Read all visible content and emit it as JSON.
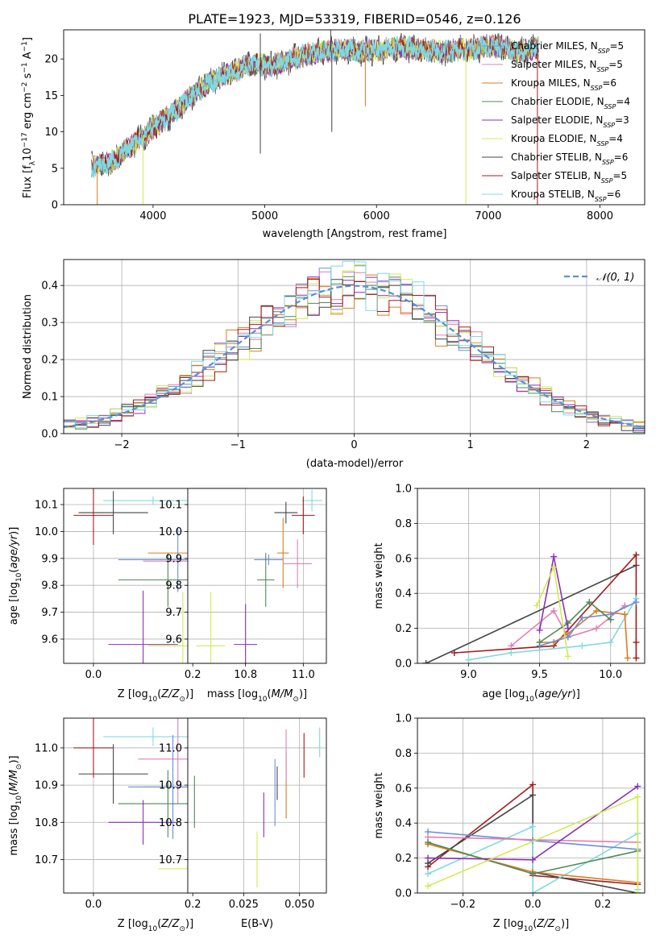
{
  "figure_title": "PLATE=1923, MJD=53319, FIBERID=0546, z=0.126",
  "models": [
    {
      "name": "Chabrier MILES",
      "nssp": "5",
      "color": "#6a8fd8"
    },
    {
      "name": "Salpeter MILES",
      "nssp": "5",
      "color": "#e07fb7"
    },
    {
      "name": "Kroupa MILES",
      "nssp": "6",
      "color": "#e07b1c"
    },
    {
      "name": "Chabrier ELODIE",
      "nssp": "4",
      "color": "#4f8a56"
    },
    {
      "name": "Salpeter ELODIE",
      "nssp": "3",
      "color": "#8e2fb5"
    },
    {
      "name": "Kroupa ELODIE",
      "nssp": "4",
      "color": "#d3ea53"
    },
    {
      "name": "Chabrier STELIB",
      "nssp": "6",
      "color": "#444444"
    },
    {
      "name": "Salpeter STELIB",
      "nssp": "5",
      "color": "#a31b1b"
    },
    {
      "name": "Kroupa STELIB",
      "nssp": "6",
      "color": "#7fd9e3"
    }
  ],
  "chart_data": [
    {
      "id": "spectrum",
      "type": "line",
      "title": "",
      "xlabel": "wavelength [Angstrom, rest frame]",
      "ylabel_parts": [
        "Flux [f",
        "λ",
        "10",
        "−17",
        " erg cm",
        "−2",
        " s",
        "−1",
        " A",
        "−1",
        "]"
      ],
      "xlim": [
        3200,
        8400
      ],
      "ylim": [
        0,
        24
      ],
      "xticks": [
        4000,
        5000,
        6000,
        7000,
        8000
      ],
      "yticks": [
        0,
        5,
        10,
        15,
        20
      ],
      "legend": "upper-right",
      "continuum": {
        "x": [
          3450,
          3550,
          3650,
          3750,
          3850,
          3950,
          4050,
          4150,
          4250,
          4350,
          4450,
          4550,
          4650,
          4750,
          4850,
          4950,
          5050,
          5150,
          5250,
          5350,
          5450,
          5550,
          5650,
          5750,
          5850,
          5950,
          6050,
          6150,
          6250,
          6350,
          6450,
          6550,
          6650,
          6750,
          6850,
          6950,
          7050,
          7150,
          7250,
          7350,
          7450
        ],
        "y": [
          5.3,
          5.5,
          6.0,
          7.5,
          8.6,
          9.8,
          11.2,
          12.2,
          13.5,
          15.0,
          16.2,
          17.0,
          17.8,
          18.5,
          19.2,
          19.2,
          19.0,
          19.5,
          20.0,
          20.5,
          20.8,
          21.0,
          21.3,
          21.2,
          21.0,
          21.2,
          21.3,
          21.5,
          21.6,
          21.3,
          21.2,
          21.0,
          21.0,
          21.4,
          21.2,
          21.6,
          21.8,
          21.6,
          21.0,
          21.2,
          21.5
        ]
      },
      "features": [
        {
          "x": 4960,
          "y": 7.0,
          "series": "Chabrier STELIB"
        },
        {
          "x": 4960,
          "y": 23.5,
          "series": "Chabrier STELIB"
        },
        {
          "x": 5590,
          "y": 24.0,
          "series": "Chabrier STELIB"
        },
        {
          "x": 5600,
          "y": 10.0,
          "series": "Chabrier STELIB"
        },
        {
          "x": 5900,
          "y": 13.5,
          "series": "Kroupa MILES"
        },
        {
          "x": 6800,
          "y": 0.0,
          "series": "Kroupa ELODIE"
        },
        {
          "x": 7440,
          "y": 0.0,
          "series": "Salpeter STELIB"
        },
        {
          "x": 3910,
          "y": 0.0,
          "series": "Kroupa ELODIE"
        },
        {
          "x": 3500,
          "y": 0.0,
          "series": "Kroupa MILES"
        }
      ]
    },
    {
      "id": "residual-histogram",
      "type": "histogram",
      "xlabel": "(data-model)/error",
      "ylabel": "Normed distribution",
      "xlim": [
        -2.5,
        2.5
      ],
      "ylim": [
        0,
        0.47
      ],
      "xticks": [
        -2,
        -1,
        0,
        1,
        2
      ],
      "yticks": [
        0.0,
        0.1,
        0.2,
        0.3,
        0.4
      ],
      "legend_label": "𝒩(0, 1)",
      "legend": "upper-right",
      "bin_width": 0.1
    },
    {
      "id": "age-vs-Z",
      "type": "errorbar",
      "xlabel": "Z [log10(Z/Z⊙)]",
      "ylabel": "age  [log10(age/yr)]",
      "xlim": [
        -0.06,
        0.31
      ],
      "ylim": [
        9.51,
        10.16
      ],
      "xticks": [
        0.0,
        0.2
      ],
      "yticks": [
        9.6,
        9.7,
        9.8,
        9.9,
        10.0,
        10.1
      ],
      "points": [
        {
          "x": 0.12,
          "xerr": 0.1,
          "y": 10.115,
          "yerr": 0.015,
          "color": "#7fd9e3"
        },
        {
          "x": 0.04,
          "xerr": 0.07,
          "y": 10.07,
          "yerr": 0.08,
          "color": "#444444"
        },
        {
          "x": 0.0,
          "xerr": 0.04,
          "y": 10.06,
          "yerr": 0.11,
          "color": "#a31b1b"
        },
        {
          "x": 0.2,
          "xerr": 0.09,
          "y": 9.92,
          "yerr": 0.09,
          "color": "#e07b1c"
        },
        {
          "x": 0.19,
          "xerr": 0.09,
          "y": 9.89,
          "yerr": 0.11,
          "color": "#e07fb7"
        },
        {
          "x": 0.17,
          "xerr": 0.12,
          "y": 9.895,
          "yerr": 0.12,
          "color": "#6a8fd8"
        },
        {
          "x": 0.15,
          "xerr": 0.1,
          "y": 9.82,
          "yerr": 0.1,
          "color": "#4f8a56"
        },
        {
          "x": 0.18,
          "xerr": 0.07,
          "y": 9.575,
          "yerr": 0.2,
          "color": "#d3ea53"
        },
        {
          "x": 0.1,
          "xerr": 0.07,
          "y": 9.58,
          "yerr": 0.2,
          "color": "#8e2fb5"
        }
      ]
    },
    {
      "id": "age-vs-mass",
      "type": "errorbar",
      "xlabel": "mass [log10(M/M⊙)]",
      "ylabel": "",
      "xlim": [
        10.6,
        11.08
      ],
      "ylim": [
        9.51,
        10.16
      ],
      "xticks": [
        10.8,
        11.0
      ],
      "yticks": [
        9.6,
        9.7,
        9.8,
        9.9,
        10.0,
        10.1
      ],
      "points": [
        {
          "x": 11.03,
          "xerr": 0.035,
          "y": 10.115,
          "yerr": 0.04,
          "color": "#7fd9e3"
        },
        {
          "x": 10.94,
          "xerr": 0.04,
          "y": 10.07,
          "yerr": 0.04,
          "color": "#444444"
        },
        {
          "x": 11.0,
          "xerr": 0.04,
          "y": 10.06,
          "yerr": 0.07,
          "color": "#a31b1b"
        },
        {
          "x": 10.93,
          "xerr": 0.02,
          "y": 9.92,
          "yerr": 0.13,
          "color": "#e07b1c"
        },
        {
          "x": 10.98,
          "xerr": 0.05,
          "y": 9.88,
          "yerr": 0.09,
          "color": "#e07fb7"
        },
        {
          "x": 10.88,
          "xerr": 0.05,
          "y": 9.895,
          "yerr": 0.02,
          "color": "#6a8fd8"
        },
        {
          "x": 10.87,
          "xerr": 0.03,
          "y": 9.82,
          "yerr": 0.1,
          "color": "#4f8a56"
        },
        {
          "x": 10.68,
          "xerr": 0.05,
          "y": 9.575,
          "yerr": 0.2,
          "color": "#d3ea53"
        },
        {
          "x": 10.8,
          "xerr": 0.04,
          "y": 9.58,
          "yerr": 0.15,
          "color": "#8e2fb5"
        }
      ]
    },
    {
      "id": "weight-vs-age",
      "type": "line",
      "xlabel": "age  [log10(age/yr)]",
      "ylabel": "mass weight",
      "xlim": [
        8.64,
        10.24
      ],
      "ylim": [
        0,
        1.0
      ],
      "xticks": [
        9.0,
        9.5,
        10.0
      ],
      "yticks": [
        0.0,
        0.2,
        0.4,
        0.6,
        0.8,
        1.0
      ],
      "series": [
        {
          "name": "Chabrier STELIB",
          "x": [
            8.7,
            10.18
          ],
          "y": [
            0.0,
            0.56
          ],
          "color": "#444444"
        },
        {
          "name": "Salpeter STELIB",
          "x": [
            8.9,
            9.6,
            10.18,
            10.18,
            10.18
          ],
          "y": [
            0.06,
            0.1,
            0.62,
            0.12,
            0.03
          ],
          "color": "#a31b1b"
        },
        {
          "name": "Kroupa STELIB",
          "x": [
            9.0,
            9.3,
            9.8,
            10.0,
            10.18
          ],
          "y": [
            0.02,
            0.06,
            0.1,
            0.12,
            0.37
          ],
          "color": "#7fd9e3"
        },
        {
          "name": "Salpeter MILES",
          "x": [
            9.3,
            9.6,
            9.7,
            9.9,
            10.1
          ],
          "y": [
            0.1,
            0.3,
            0.15,
            0.2,
            0.33
          ],
          "color": "#e07fb7"
        },
        {
          "name": "Kroupa MILES",
          "x": [
            9.5,
            9.6,
            9.7,
            9.9,
            10.1,
            10.12
          ],
          "y": [
            0.12,
            0.12,
            0.17,
            0.3,
            0.28,
            0.03
          ],
          "color": "#e07b1c"
        },
        {
          "name": "Chabrier MILES",
          "x": [
            9.5,
            9.7,
            9.8,
            10.0,
            10.18
          ],
          "y": [
            0.1,
            0.15,
            0.26,
            0.28,
            0.35
          ],
          "color": "#6a8fd8"
        },
        {
          "name": "Chabrier ELODIE",
          "x": [
            9.5,
            9.7,
            9.85,
            10.0
          ],
          "y": [
            0.12,
            0.23,
            0.35,
            0.25
          ],
          "color": "#4f8a56"
        },
        {
          "name": "Salpeter ELODIE",
          "x": [
            9.5,
            9.6,
            9.7
          ],
          "y": [
            0.19,
            0.61,
            0.2
          ],
          "color": "#8e2fb5"
        },
        {
          "name": "Kroupa ELODIE",
          "x": [
            9.48,
            9.6,
            9.7
          ],
          "y": [
            0.33,
            0.55,
            0.04
          ],
          "color": "#d3ea53"
        }
      ]
    },
    {
      "id": "mass-vs-Z",
      "type": "errorbar",
      "xlabel": "Z [log10(Z/Z⊙)]",
      "ylabel": "mass [log10(M/M⊙)]",
      "xlim": [
        -0.06,
        0.31
      ],
      "ylim": [
        10.61,
        11.08
      ],
      "xticks": [
        0.0,
        0.2
      ],
      "yticks": [
        10.7,
        10.8,
        10.9,
        11.0
      ],
      "points": [
        {
          "x": 0.12,
          "xerr": 0.1,
          "y": 11.03,
          "yerr": 0.025,
          "color": "#7fd9e3"
        },
        {
          "x": 0.04,
          "xerr": 0.07,
          "y": 10.93,
          "yerr": 0.08,
          "color": "#444444"
        },
        {
          "x": 0.0,
          "xerr": 0.04,
          "y": 11.0,
          "yerr": 0.08,
          "color": "#a31b1b"
        },
        {
          "x": 0.2,
          "xerr": 0.1,
          "y": 10.895,
          "yerr": 0.06,
          "color": "#e07b1c"
        },
        {
          "x": 0.17,
          "xerr": 0.08,
          "y": 10.97,
          "yerr": 0.12,
          "color": "#e07fb7"
        },
        {
          "x": 0.16,
          "xerr": 0.09,
          "y": 10.895,
          "yerr": 0.14,
          "color": "#6a8fd8"
        },
        {
          "x": 0.15,
          "xerr": 0.1,
          "y": 10.85,
          "yerr": 0.09,
          "color": "#4f8a56"
        },
        {
          "x": 0.2,
          "xerr": 0.07,
          "y": 10.675,
          "yerr": 0.1,
          "color": "#d3ea53"
        },
        {
          "x": 0.1,
          "xerr": 0.07,
          "y": 10.8,
          "yerr": 0.06,
          "color": "#8e2fb5"
        }
      ]
    },
    {
      "id": "mass-vs-ebv",
      "type": "errorbar",
      "xlabel": "E(B-V)",
      "ylabel": "",
      "xlim": [
        0.0,
        0.062
      ],
      "ylim": [
        10.61,
        11.08
      ],
      "xticks": [
        0.025,
        0.05
      ],
      "yticks": [
        10.7,
        10.8,
        10.9,
        11.0
      ],
      "points": [
        {
          "x": 0.003,
          "y": 10.855,
          "yerr": 0.07,
          "color": "#4f8a56"
        },
        {
          "x": 0.031,
          "y": 10.7,
          "yerr": 0.075,
          "color": "#d3ea53"
        },
        {
          "x": 0.034,
          "y": 10.82,
          "yerr": 0.06,
          "color": "#8e2fb5"
        },
        {
          "x": 0.039,
          "y": 10.88,
          "yerr": 0.09,
          "color": "#6a8fd8"
        },
        {
          "x": 0.04,
          "y": 10.905,
          "yerr": 0.045,
          "color": "#444444"
        },
        {
          "x": 0.044,
          "y": 10.9,
          "yerr": 0.09,
          "color": "#e07b1c"
        },
        {
          "x": 0.044,
          "y": 10.98,
          "yerr": 0.07,
          "color": "#e07fb7"
        },
        {
          "x": 0.052,
          "y": 10.98,
          "yerr": 0.06,
          "color": "#a31b1b"
        },
        {
          "x": 0.059,
          "y": 11.015,
          "yerr": 0.04,
          "color": "#7fd9e3"
        }
      ]
    },
    {
      "id": "weight-vs-Z",
      "type": "line",
      "xlabel": "Z [log10(Z/Z⊙)]",
      "ylabel": "mass weight",
      "xlim": [
        -0.33,
        0.32
      ],
      "ylim": [
        0,
        1.0
      ],
      "xticks": [
        -0.2,
        0.0,
        0.2
      ],
      "yticks": [
        0.0,
        0.2,
        0.4,
        0.6,
        0.8,
        1.0
      ],
      "series": [
        {
          "name": "Salpeter STELIB",
          "x": [
            -0.3,
            0.0,
            0.0,
            0.3
          ],
          "y": [
            0.15,
            0.62,
            0.1,
            0.05
          ],
          "color": "#a31b1b"
        },
        {
          "name": "Chabrier STELIB",
          "x": [
            -0.3,
            0.0,
            0.0,
            0.3
          ],
          "y": [
            0.17,
            0.56,
            0.12,
            0.0
          ],
          "color": "#444444"
        },
        {
          "name": "Kroupa STELIB",
          "x": [
            -0.3,
            0.0,
            0.0,
            0.3,
            0.3
          ],
          "y": [
            0.11,
            0.38,
            0.0,
            0.34,
            0.02
          ],
          "color": "#7fd9e3"
        },
        {
          "name": "Chabrier MILES",
          "x": [
            -0.3,
            0.0,
            0.3
          ],
          "y": [
            0.35,
            0.3,
            0.25
          ],
          "color": "#6a8fd8"
        },
        {
          "name": "Salpeter MILES",
          "x": [
            -0.3,
            0.3
          ],
          "y": [
            0.32,
            0.29
          ],
          "color": "#e07fb7"
        },
        {
          "name": "Kroupa MILES",
          "x": [
            -0.3,
            0.0,
            0.3
          ],
          "y": [
            0.28,
            0.12,
            0.06
          ],
          "color": "#e07b1c"
        },
        {
          "name": "Chabrier ELODIE",
          "x": [
            -0.3,
            0.0,
            0.3
          ],
          "y": [
            0.29,
            0.11,
            0.24
          ],
          "color": "#4f8a56"
        },
        {
          "name": "Salpeter ELODIE",
          "x": [
            -0.3,
            0.0,
            0.3
          ],
          "y": [
            0.2,
            0.19,
            0.61
          ],
          "color": "#8e2fb5"
        },
        {
          "name": "Kroupa ELODIE",
          "x": [
            -0.3,
            0.3,
            0.3
          ],
          "y": [
            0.04,
            0.55,
            0.0
          ],
          "color": "#d3ea53"
        }
      ]
    }
  ]
}
